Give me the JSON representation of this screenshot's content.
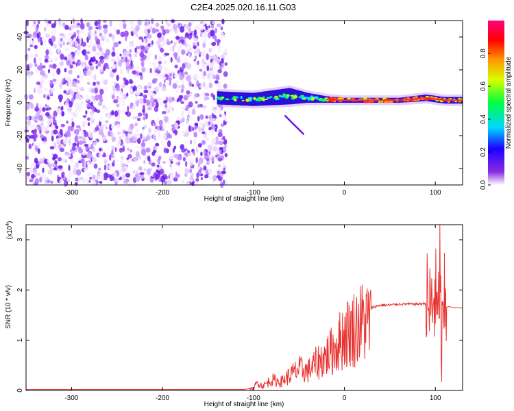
{
  "title": "C2E4.2025.020.16.11.G03",
  "chart_data": [
    {
      "type": "heatmap",
      "xlabel": "Height of straight line (km)",
      "ylabel": "Frequency (Hz)",
      "xlim": [
        -350,
        130
      ],
      "ylim": [
        -50,
        50
      ],
      "x_ticks": [
        -300,
        -200,
        -100,
        0,
        100
      ],
      "y_ticks": [
        -40,
        -20,
        0,
        20,
        40
      ],
      "noise_region_x": [
        -350,
        -130
      ],
      "signal_band": [
        {
          "x": -140,
          "y_center": 3,
          "half_width": 4
        },
        {
          "x": -100,
          "y_center": 2,
          "half_width": 4
        },
        {
          "x": -60,
          "y_center": 4,
          "half_width": 5
        },
        {
          "x": -40,
          "y_center": 3,
          "half_width": 3
        },
        {
          "x": -20,
          "y_center": 2,
          "half_width": 2
        },
        {
          "x": 0,
          "y_center": 1.5,
          "half_width": 1.5
        },
        {
          "x": 60,
          "y_center": 1.5,
          "half_width": 1.5
        },
        {
          "x": 90,
          "y_center": 3,
          "half_width": 2
        },
        {
          "x": 110,
          "y_center": 1.5,
          "half_width": 2
        },
        {
          "x": 130,
          "y_center": 1.5,
          "half_width": 2
        }
      ],
      "colorbar": {
        "label": "Normalized spectral amplitude",
        "ticks": [
          0.0,
          0.2,
          0.4,
          0.6,
          0.8
        ],
        "range": [
          0,
          1
        ]
      }
    },
    {
      "type": "line",
      "xlabel": "Height of straight line (km)",
      "ylabel": "SNR (10 * v/v)",
      "y_scale_label": "(x10",
      "y_scale_exponent": "4",
      "y_scale_suffix": ")",
      "xlim": [
        -350,
        130
      ],
      "ylim": [
        0,
        3.3
      ],
      "x_ticks": [
        -300,
        -200,
        -100,
        0,
        100
      ],
      "y_ticks": [
        0,
        1,
        2,
        3
      ],
      "color": "#e8322f",
      "series": [
        {
          "x": [
            -350,
            -300,
            -250,
            -200,
            -150,
            -110,
            -100,
            -95,
            -90,
            -80,
            -70,
            -60,
            -50,
            -40,
            -30,
            -20,
            -10,
            0,
            10,
            20,
            30,
            40,
            50,
            60,
            70,
            80,
            90,
            95,
            100,
            103,
            105,
            107,
            110,
            115,
            120,
            130
          ],
          "y": [
            0.02,
            0.02,
            0.02,
            0.02,
            0.02,
            0.02,
            0.05,
            0.2,
            0.1,
            0.25,
            0.2,
            0.35,
            0.5,
            0.45,
            0.65,
            0.8,
            1.0,
            1.3,
            1.45,
            1.6,
            1.65,
            1.7,
            1.7,
            1.72,
            1.72,
            1.72,
            1.73,
            1.6,
            1.9,
            1.2,
            2.6,
            0.7,
            1.65,
            1.67,
            1.65,
            1.64
          ]
        }
      ]
    }
  ]
}
